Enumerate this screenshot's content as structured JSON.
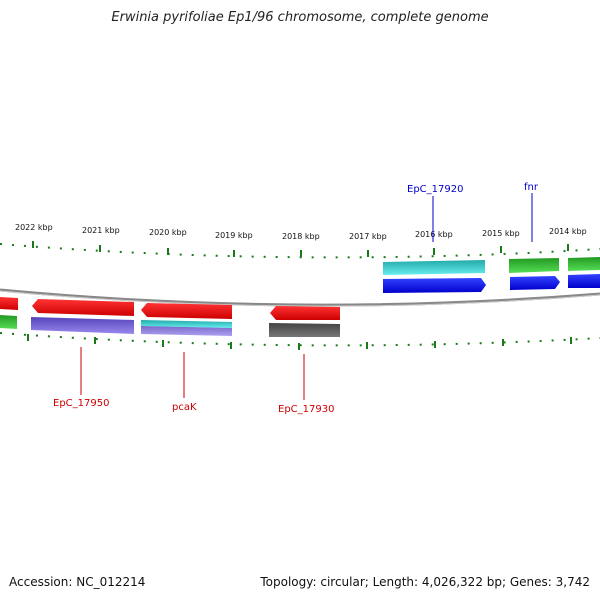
{
  "title": "Erwinia pyrifoliae Ep1/96 chromosome, complete genome",
  "footer": {
    "accession": "Accession: NC_012214",
    "info": "Topology: circular; Length: 4,026,322 bp; Genes: 3,742"
  },
  "ruler": {
    "labels": [
      "2022 kbp",
      "2021 kbp",
      "2020 kbp",
      "2019 kbp",
      "2018 kbp",
      "2017 kbp",
      "2016 kbp",
      "2015 kbp",
      "2014 kbp"
    ]
  },
  "gene_labels": [
    {
      "name": "EpC_17920",
      "color": "#0000cc"
    },
    {
      "name": "fnr",
      "color": "#0000cc"
    },
    {
      "name": "EpC_17950",
      "color": "#cc0000"
    },
    {
      "name": "pcaK",
      "color": "#cc0000"
    },
    {
      "name": "EpC_17930",
      "color": "#cc0000"
    }
  ],
  "colors": {
    "forward_cds": "#0000ff",
    "reverse_cds": "#ff0000",
    "cog_cyan": "#22cccc",
    "cog_green": "#33bb33",
    "cog_purple": "#7766dd",
    "cog_gray": "#666666",
    "tick": "#1a7a1a",
    "backbone": "#888888"
  }
}
